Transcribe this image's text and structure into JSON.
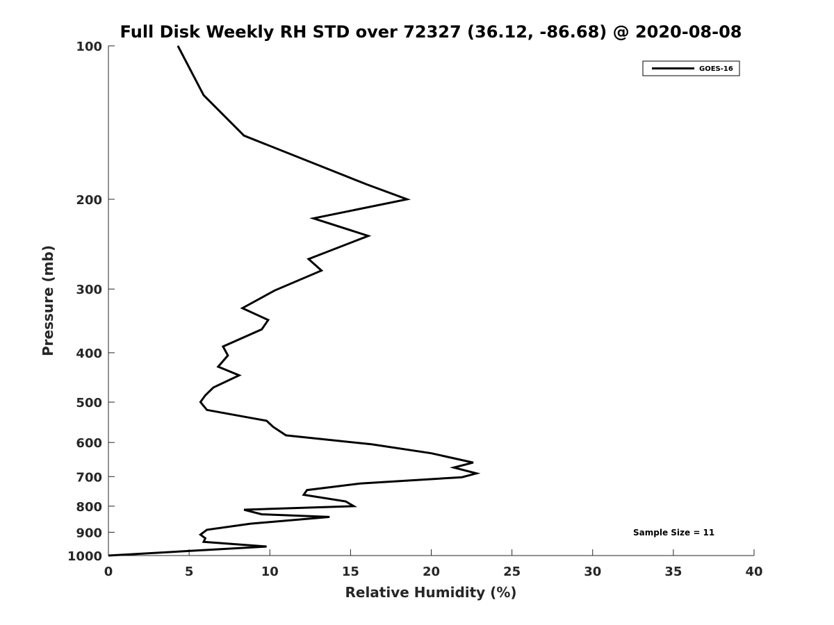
{
  "chart_data": {
    "type": "line",
    "title": "Full Disk Weekly RH STD over 72327 (36.12, -86.68) @ 2020-08-08",
    "xlabel": "Relative Humidity (%)",
    "ylabel": "Pressure (mb)",
    "xlim": [
      0,
      40
    ],
    "ylim": [
      100,
      1000
    ],
    "yscale": "log",
    "yreversed": true,
    "grid": false,
    "legend_position": "top-right",
    "x_ticks": [
      0,
      5,
      10,
      15,
      20,
      25,
      30,
      35,
      40
    ],
    "y_ticks": [
      100,
      200,
      300,
      400,
      500,
      600,
      700,
      800,
      900,
      1000
    ],
    "series": [
      {
        "name": "GOES-16",
        "color": "#000000",
        "points": [
          [
            4.3,
            100
          ],
          [
            5.9,
            125
          ],
          [
            8.4,
            150
          ],
          [
            16.0,
            187
          ],
          [
            18.5,
            200
          ],
          [
            12.7,
            218
          ],
          [
            16.1,
            236
          ],
          [
            12.4,
            262
          ],
          [
            13.2,
            276
          ],
          [
            10.3,
            302
          ],
          [
            8.3,
            327
          ],
          [
            9.9,
            345
          ],
          [
            9.5,
            360
          ],
          [
            7.1,
            389
          ],
          [
            7.4,
            405
          ],
          [
            6.8,
            426
          ],
          [
            8.1,
            443
          ],
          [
            6.5,
            468
          ],
          [
            6.0,
            485
          ],
          [
            5.7,
            500
          ],
          [
            6.1,
            518
          ],
          [
            9.8,
            544
          ],
          [
            10.2,
            559
          ],
          [
            11.0,
            581
          ],
          [
            16.3,
            605
          ],
          [
            20.0,
            630
          ],
          [
            22.6,
            657
          ],
          [
            21.4,
            672
          ],
          [
            22.8,
            690
          ],
          [
            21.9,
            702
          ],
          [
            15.6,
            722
          ],
          [
            12.3,
            744
          ],
          [
            12.1,
            760
          ],
          [
            14.7,
            783
          ],
          [
            15.2,
            800
          ],
          [
            8.4,
            813
          ],
          [
            9.5,
            830
          ],
          [
            13.7,
            840
          ],
          [
            8.8,
            866
          ],
          [
            6.1,
            890
          ],
          [
            5.7,
            910
          ],
          [
            6.0,
            925
          ],
          [
            5.9,
            940
          ],
          [
            9.8,
            960
          ],
          [
            0.0,
            1000
          ]
        ]
      }
    ],
    "annotation": "Sample Size = 11"
  }
}
